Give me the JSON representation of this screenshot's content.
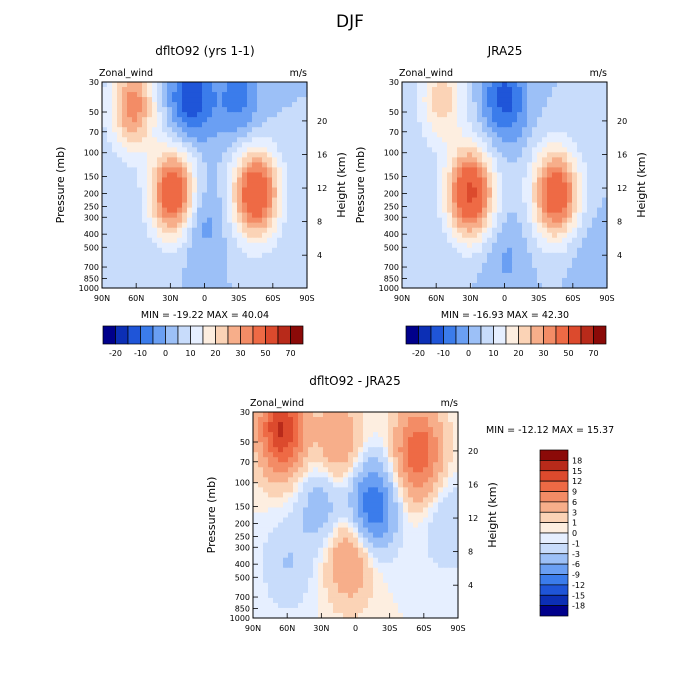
{
  "page": {
    "title": "DJF"
  },
  "chart_data": [
    {
      "type": "heatmap",
      "title": "dfltO92 (yrs 1-1)",
      "variable_label": "Zonal_wind",
      "units_label": "m/s",
      "ylabel": "Pressure (mb)",
      "ylabel_right": "Height (km)",
      "x_tick_labels": [
        "90N",
        "60N",
        "30N",
        "0",
        "30S",
        "60S",
        "90S"
      ],
      "y_tick_labels": [
        "30",
        "50",
        "70",
        "100",
        "150",
        "200",
        "250",
        "300",
        "400",
        "500",
        "700",
        "850",
        "1000"
      ],
      "y_tick_values": [
        30,
        50,
        70,
        100,
        150,
        200,
        250,
        300,
        400,
        500,
        700,
        850,
        1000
      ],
      "right_tick_labels": [
        "4",
        "8",
        "12",
        "16",
        "20"
      ],
      "right_tick_values": [
        4,
        8,
        12,
        16,
        20
      ],
      "stats_text": "MIN = -19.22  MAX = 40.04",
      "features": [
        {
          "lat": 63,
          "p": 45,
          "value": 28
        },
        {
          "lat": 27,
          "p": 200,
          "value": 40.04
        },
        {
          "lat": -45,
          "p": 200,
          "value": 40
        },
        {
          "lat": 12,
          "p": 40,
          "value": -19.22
        },
        {
          "lat": 5,
          "p": 300,
          "value": -10
        },
        {
          "lat": -30,
          "p": 40,
          "value": -12
        }
      ]
    },
    {
      "type": "heatmap",
      "title": "JRA25",
      "variable_label": "Zonal_wind",
      "units_label": "m/s",
      "ylabel": "Pressure (mb)",
      "ylabel_right": "Height (km)",
      "x_tick_labels": [
        "90N",
        "60N",
        "30N",
        "0",
        "30S",
        "60S",
        "90S"
      ],
      "y_tick_labels": [
        "30",
        "50",
        "70",
        "100",
        "150",
        "200",
        "250",
        "300",
        "400",
        "500",
        "700",
        "850",
        "1000"
      ],
      "y_tick_values": [
        30,
        50,
        70,
        100,
        150,
        200,
        250,
        300,
        400,
        500,
        700,
        850,
        1000
      ],
      "right_tick_labels": [
        "4",
        "8",
        "12",
        "16",
        "20"
      ],
      "right_tick_values": [
        4,
        8,
        12,
        16,
        20
      ],
      "stats_text": "MIN = -16.93  MAX = 42.30",
      "features": [
        {
          "lat": 55,
          "p": 40,
          "value": 18
        },
        {
          "lat": 30,
          "p": 200,
          "value": 42.3
        },
        {
          "lat": -45,
          "p": 200,
          "value": 38
        },
        {
          "lat": 0,
          "p": 40,
          "value": -16.93
        },
        {
          "lat": 0,
          "p": 600,
          "value": -6
        },
        {
          "lat": -75,
          "p": 600,
          "value": -4
        }
      ]
    },
    {
      "type": "heatmap",
      "title": "dfltO92 - JRA25",
      "variable_label": "Zonal_wind",
      "units_label": "m/s",
      "ylabel": "Pressure (mb)",
      "ylabel_right": "Height (km)",
      "x_tick_labels": [
        "90N",
        "60N",
        "30N",
        "0",
        "30S",
        "60S",
        "90S"
      ],
      "y_tick_labels": [
        "30",
        "50",
        "70",
        "100",
        "150",
        "200",
        "250",
        "300",
        "400",
        "500",
        "700",
        "850",
        "1000"
      ],
      "y_tick_values": [
        30,
        50,
        70,
        100,
        150,
        200,
        250,
        300,
        400,
        500,
        700,
        850,
        1000
      ],
      "right_tick_labels": [
        "4",
        "8",
        "12",
        "16",
        "20"
      ],
      "right_tick_values": [
        4,
        8,
        12,
        16,
        20
      ],
      "stats_text": "MIN = -12.12  MAX = 15.37",
      "features": [
        {
          "lat": 65,
          "p": 40,
          "value": 15.37
        },
        {
          "lat": -55,
          "p": 60,
          "value": 12
        },
        {
          "lat": 5,
          "p": 350,
          "value": 7
        },
        {
          "lat": 15,
          "p": 50,
          "value": 6
        },
        {
          "lat": -15,
          "p": 150,
          "value": -12.12
        },
        {
          "lat": 30,
          "p": 150,
          "value": -5
        },
        {
          "lat": 60,
          "p": 400,
          "value": -3
        },
        {
          "lat": -80,
          "p": 200,
          "value": -3
        }
      ]
    }
  ],
  "colorbars": {
    "horizontal_levels": [
      "-20",
      "-10",
      "0",
      "10",
      "20",
      "30",
      "50",
      "70"
    ],
    "horizontal_colors": [
      "#00008b",
      "#0c2fb5",
      "#1f55d8",
      "#3b7ceb",
      "#6a9ff3",
      "#9cc0f7",
      "#c8dcfb",
      "#e6efff",
      "#fdeee0",
      "#fbd3b6",
      "#f7ae8a",
      "#f38c66",
      "#ee6a45",
      "#dc4a2d",
      "#b82a1a",
      "#8b0a08"
    ],
    "vertical_levels": [
      "18",
      "15",
      "12",
      "9",
      "6",
      "3",
      "1",
      "0",
      "-1",
      "-3",
      "-6",
      "-9",
      "-12",
      "-15",
      "-18"
    ],
    "vertical_colors": [
      "#8b0a08",
      "#b82a1a",
      "#dc4a2d",
      "#ee6a45",
      "#f38c66",
      "#f7ae8a",
      "#fbd3b6",
      "#fdeee0",
      "#e6efff",
      "#c8dcfb",
      "#9cc0f7",
      "#6a9ff3",
      "#3b7ceb",
      "#1f55d8",
      "#0c2fb5",
      "#00008b"
    ]
  }
}
